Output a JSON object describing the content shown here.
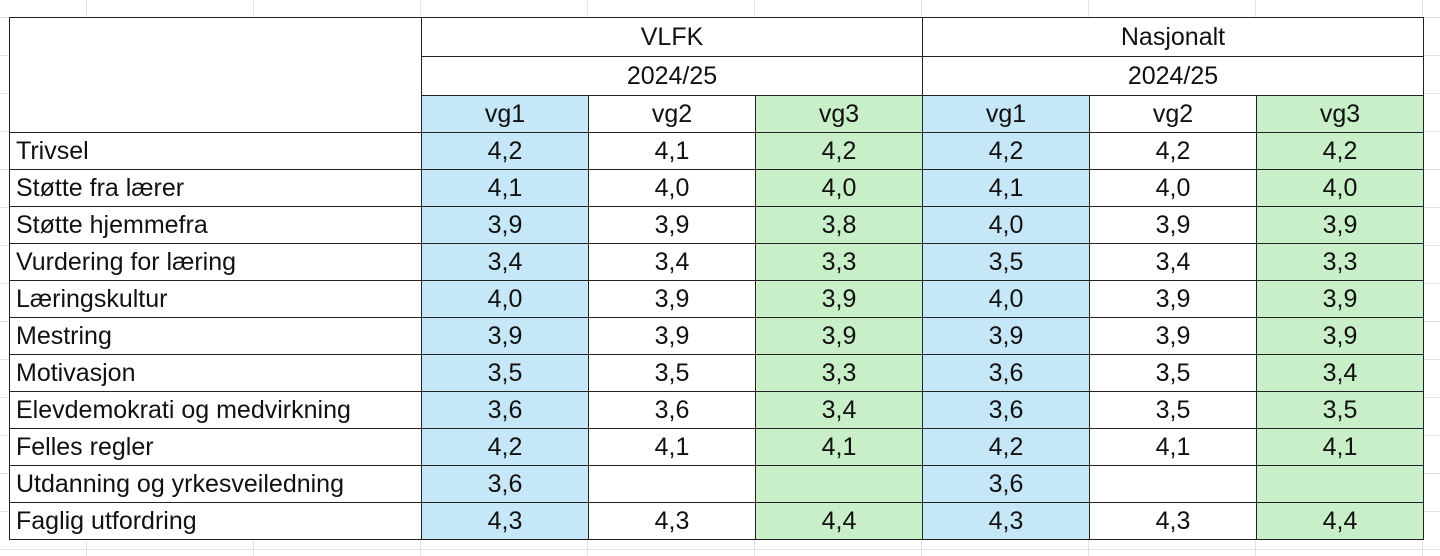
{
  "regions": [
    {
      "name": "VLFK",
      "period": "2024/25"
    },
    {
      "name": "Nasjonalt",
      "period": "2024/25"
    }
  ],
  "grades": [
    "vg1",
    "vg2",
    "vg3",
    "vg1",
    "vg2",
    "vg3"
  ],
  "colors": {
    "vg1_fill": "#c6e7f7",
    "vg3_fill": "#c9efc8",
    "border": "#222222"
  },
  "rows": [
    {
      "label": "Trivsel",
      "values": [
        "4,2",
        "4,1",
        "4,2",
        "4,2",
        "4,2",
        "4,2"
      ]
    },
    {
      "label": "Støtte fra lærer",
      "values": [
        "4,1",
        "4,0",
        "4,0",
        "4,1",
        "4,0",
        "4,0"
      ]
    },
    {
      "label": "Støtte hjemmefra",
      "values": [
        "3,9",
        "3,9",
        "3,8",
        "4,0",
        "3,9",
        "3,9"
      ]
    },
    {
      "label": "Vurdering for læring",
      "values": [
        "3,4",
        "3,4",
        "3,3",
        "3,5",
        "3,4",
        "3,3"
      ]
    },
    {
      "label": "Læringskultur",
      "values": [
        "4,0",
        "3,9",
        "3,9",
        "4,0",
        "3,9",
        "3,9"
      ]
    },
    {
      "label": "Mestring",
      "values": [
        "3,9",
        "3,9",
        "3,9",
        "3,9",
        "3,9",
        "3,9"
      ]
    },
    {
      "label": "Motivasjon",
      "values": [
        "3,5",
        "3,5",
        "3,3",
        "3,6",
        "3,5",
        "3,4"
      ]
    },
    {
      "label": "Elevdemokrati og medvirkning",
      "values": [
        "3,6",
        "3,6",
        "3,4",
        "3,6",
        "3,5",
        "3,5"
      ]
    },
    {
      "label": "Felles regler",
      "values": [
        "4,2",
        "4,1",
        "4,1",
        "4,2",
        "4,1",
        "4,1"
      ]
    },
    {
      "label": "Utdanning og yrkesveiledning",
      "values": [
        "3,6",
        "",
        "",
        "3,6",
        "",
        ""
      ]
    },
    {
      "label": "Faglig utfordring",
      "values": [
        "4,3",
        "4,3",
        "4,4",
        "4,3",
        "4,3",
        "4,4"
      ]
    }
  ]
}
